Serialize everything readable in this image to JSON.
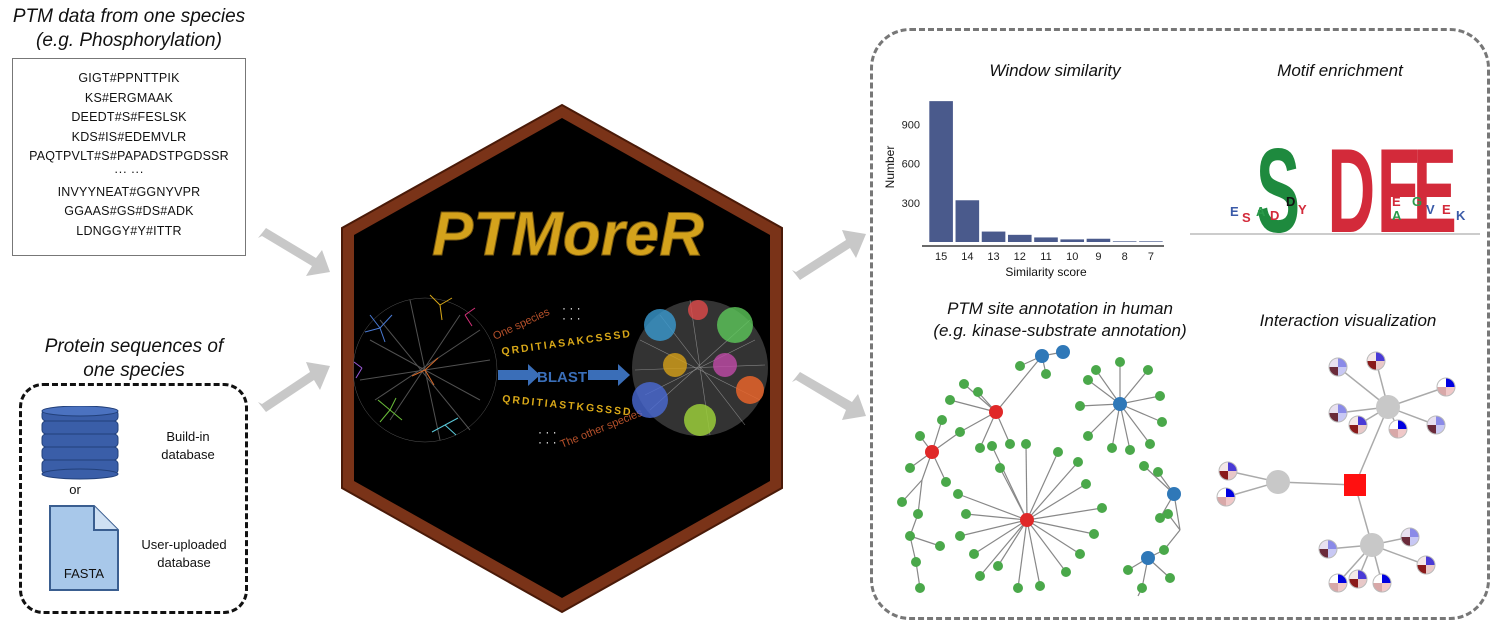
{
  "left_top": {
    "title_line1": "PTM data from one species",
    "title_line2": "(e.g. Phosphorylation)",
    "sequences": [
      "GIGT#PPNTTPIK",
      "KS#ERGMAAK",
      "DEEDT#S#FESLSK",
      "KDS#IS#EDEMVLR",
      "PAQTPVLT#S#PAPADSTPGDSSR",
      "··· ···",
      "INVYYNEAT#GGNYVPR",
      "GGAAS#GS#DS#ADK",
      "LDNGGY#Y#ITTR"
    ]
  },
  "left_bottom": {
    "title_line1": "Protein sequences of",
    "title_line2": "one species",
    "db1_line1": "Build-in",
    "db1_line2": "database",
    "or": "or",
    "file_label": "FASTA",
    "db2_line1": "User-uploaded",
    "db2_line2": "database"
  },
  "center": {
    "logo": "PTMoreR",
    "one_species": "One species",
    "seq_top": "QRDITIASAKCSSSD",
    "blast": "BLAST",
    "seq_bottom": "QRDITIASTKGSSSD",
    "other_species": "The other species",
    "dots": "· · ·"
  },
  "right": {
    "window_similarity": {
      "title": "Window similarity",
      "chart_data": {
        "type": "bar",
        "categories": [
          "15",
          "14",
          "13",
          "12",
          "11",
          "10",
          "9",
          "8",
          "7"
        ],
        "values": [
          1080,
          320,
          80,
          55,
          35,
          20,
          25,
          5,
          5
        ],
        "ylabel": "Number",
        "xlabel": "Similarity score",
        "yticks": [
          300,
          600,
          900
        ],
        "ylim": [
          0,
          1150
        ],
        "bar_color": "#4a5a8c"
      }
    },
    "motif": {
      "title": "Motif enrichment"
    },
    "annotation": {
      "title_line1": "PTM site annotation in human",
      "title_line2": "(e.g. kinase-substrate annotation)"
    },
    "interaction": {
      "title": "Interaction visualization"
    }
  }
}
